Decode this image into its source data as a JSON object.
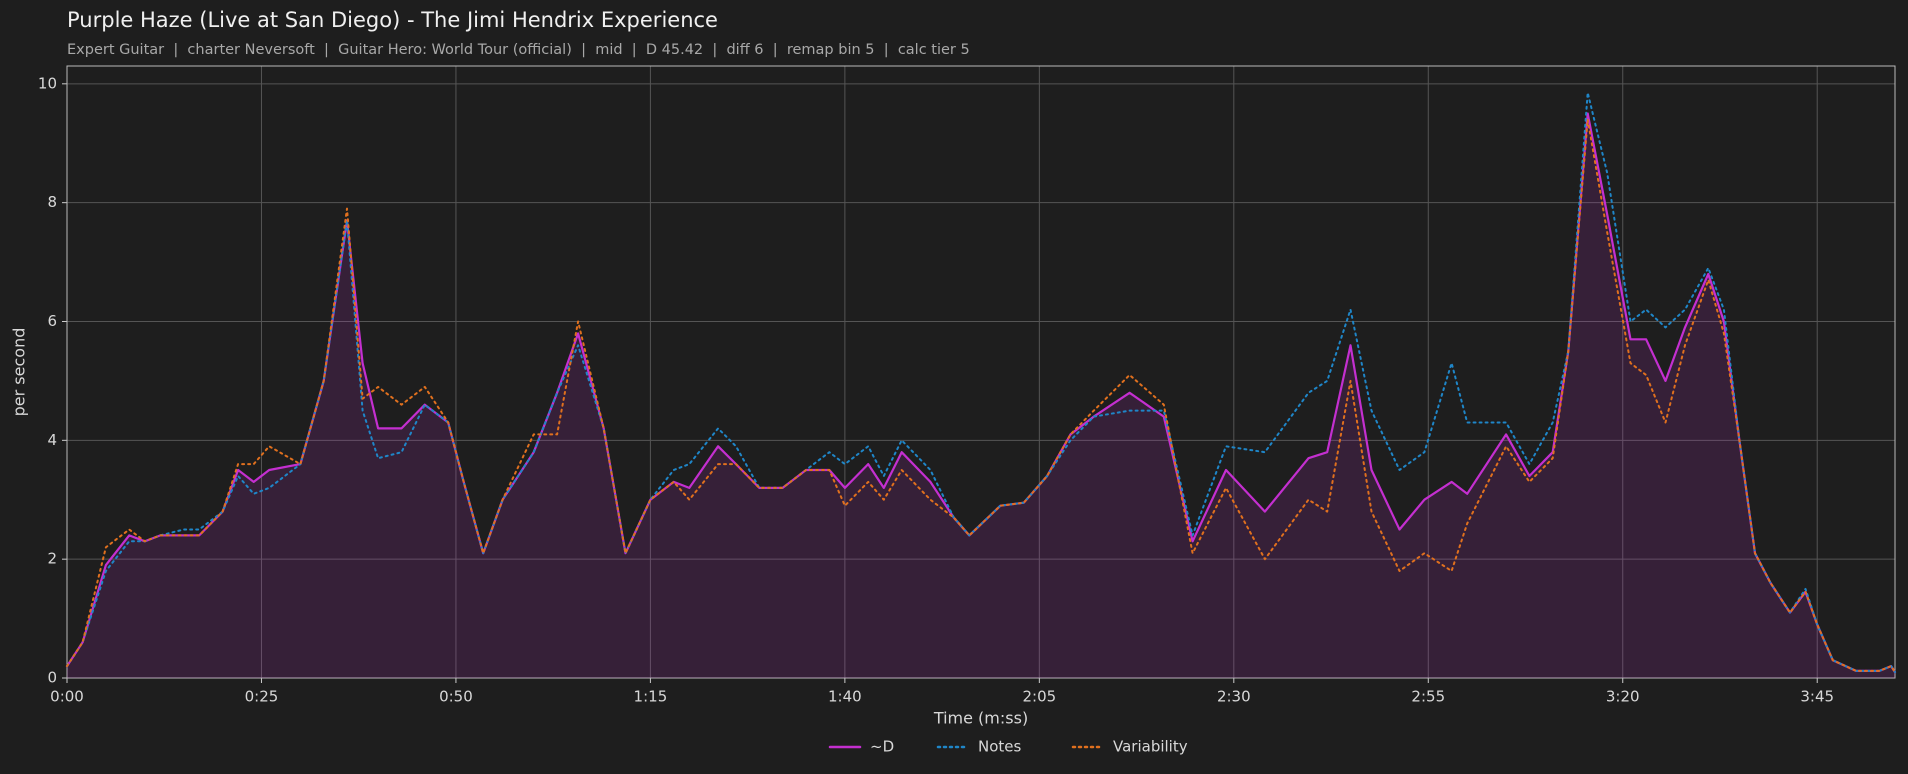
{
  "chart_data": {
    "type": "line",
    "title": "Purple Haze (Live at San Diego) - The Jimi Hendrix Experience",
    "subtitle": "Expert Guitar  |  charter Neversoft  |  Guitar Hero: World Tour (official)  |  mid  |  D 45.42  |  diff 6  |  remap bin 5  |  calc tier 5",
    "x_label": "Time (m:ss)",
    "y_label": "per second",
    "x": [
      0,
      2,
      5,
      8,
      10,
      12,
      15,
      17,
      20,
      22,
      24,
      26,
      30,
      33,
      36,
      38,
      40,
      43,
      46,
      49,
      51,
      53.5,
      56,
      60,
      63,
      65.7,
      69,
      71.8,
      75,
      78,
      80,
      83.7,
      86,
      89,
      92,
      95,
      98,
      100,
      103,
      105,
      107.3,
      111,
      114,
      116,
      120,
      123,
      126,
      129,
      132,
      136.6,
      141,
      144.7,
      149,
      154,
      159.6,
      162,
      165,
      167.7,
      171.3,
      174.5,
      178,
      180,
      185,
      188,
      191,
      193,
      195.5,
      198,
      201,
      203,
      205.5,
      208,
      211,
      213,
      215,
      217,
      219,
      221.5,
      223.5,
      225,
      227,
      230,
      233,
      234.5,
      235
    ],
    "series": [
      {
        "name": "~D",
        "color": "#c42fd0",
        "style": "solid",
        "fill": true,
        "values": [
          0.2,
          0.6,
          1.9,
          2.4,
          2.3,
          2.4,
          2.4,
          2.4,
          2.8,
          3.5,
          3.3,
          3.5,
          3.6,
          5.0,
          7.7,
          5.3,
          4.2,
          4.2,
          4.6,
          4.3,
          3.3,
          2.1,
          3.0,
          3.8,
          4.8,
          5.8,
          4.2,
          2.1,
          3.0,
          3.3,
          3.2,
          3.9,
          3.6,
          3.2,
          3.2,
          3.5,
          3.5,
          3.2,
          3.6,
          3.2,
          3.8,
          3.3,
          2.7,
          2.4,
          2.9,
          2.95,
          3.4,
          4.1,
          4.4,
          4.8,
          4.4,
          2.3,
          3.5,
          2.8,
          3.7,
          3.8,
          5.6,
          3.5,
          2.5,
          3.0,
          3.3,
          3.1,
          4.1,
          3.4,
          3.8,
          5.5,
          9.5,
          7.8,
          5.7,
          5.7,
          5.0,
          5.9,
          6.8,
          6.0,
          4.0,
          2.1,
          1.6,
          1.1,
          1.45,
          0.9,
          0.3,
          0.12,
          0.12,
          0.2,
          0.1
        ]
      },
      {
        "name": "Notes",
        "color": "#1f86c8",
        "style": "dotted",
        "values": [
          0.2,
          0.6,
          1.8,
          2.3,
          2.3,
          2.4,
          2.5,
          2.5,
          2.8,
          3.4,
          3.1,
          3.2,
          3.6,
          5.0,
          7.7,
          4.5,
          3.7,
          3.8,
          4.6,
          4.3,
          3.3,
          2.1,
          3.0,
          3.8,
          4.8,
          5.6,
          4.2,
          2.1,
          3.0,
          3.5,
          3.6,
          4.2,
          3.9,
          3.2,
          3.2,
          3.5,
          3.8,
          3.6,
          3.9,
          3.4,
          4.0,
          3.5,
          2.7,
          2.4,
          2.9,
          2.95,
          3.4,
          4.0,
          4.4,
          4.5,
          4.5,
          2.4,
          3.9,
          3.8,
          4.8,
          5.0,
          6.2,
          4.5,
          3.5,
          3.8,
          5.3,
          4.3,
          4.3,
          3.6,
          4.3,
          5.5,
          9.85,
          8.5,
          6.0,
          6.2,
          5.9,
          6.2,
          6.9,
          6.2,
          4.0,
          2.1,
          1.6,
          1.1,
          1.5,
          0.9,
          0.3,
          0.12,
          0.12,
          0.2,
          0.1
        ]
      },
      {
        "name": "Variability",
        "color": "#e0701e",
        "style": "dotted",
        "values": [
          0.2,
          0.6,
          2.2,
          2.5,
          2.3,
          2.4,
          2.4,
          2.4,
          2.8,
          3.6,
          3.6,
          3.9,
          3.6,
          5.0,
          7.9,
          4.7,
          4.9,
          4.6,
          4.9,
          4.3,
          3.3,
          2.1,
          3.0,
          4.1,
          4.1,
          6.0,
          4.2,
          2.1,
          3.0,
          3.3,
          3.0,
          3.6,
          3.6,
          3.2,
          3.2,
          3.5,
          3.5,
          2.9,
          3.3,
          3.0,
          3.5,
          3.0,
          2.7,
          2.4,
          2.9,
          2.95,
          3.4,
          4.1,
          4.5,
          5.1,
          4.6,
          2.1,
          3.2,
          2.0,
          3.0,
          2.8,
          5.0,
          2.8,
          1.8,
          2.1,
          1.8,
          2.6,
          3.9,
          3.3,
          3.7,
          5.5,
          9.4,
          7.5,
          5.3,
          5.1,
          4.3,
          5.6,
          6.7,
          5.8,
          4.0,
          2.1,
          1.6,
          1.1,
          1.45,
          0.9,
          0.3,
          0.12,
          0.12,
          0.2,
          0.1
        ]
      }
    ],
    "xlim": [
      0,
      235
    ],
    "ylim": [
      0,
      10.3
    ],
    "xticks": [
      {
        "value": 0,
        "label": "0:00"
      },
      {
        "value": 25,
        "label": "0:25"
      },
      {
        "value": 50,
        "label": "0:50"
      },
      {
        "value": 75,
        "label": "1:15"
      },
      {
        "value": 100,
        "label": "1:40"
      },
      {
        "value": 125,
        "label": "2:05"
      },
      {
        "value": 150,
        "label": "2:30"
      },
      {
        "value": 175,
        "label": "2:55"
      },
      {
        "value": 200,
        "label": "3:20"
      },
      {
        "value": 225,
        "label": "3:45"
      }
    ],
    "yticks": [
      0,
      2,
      4,
      6,
      8,
      10
    ],
    "grid": true,
    "legend": "bottom"
  }
}
